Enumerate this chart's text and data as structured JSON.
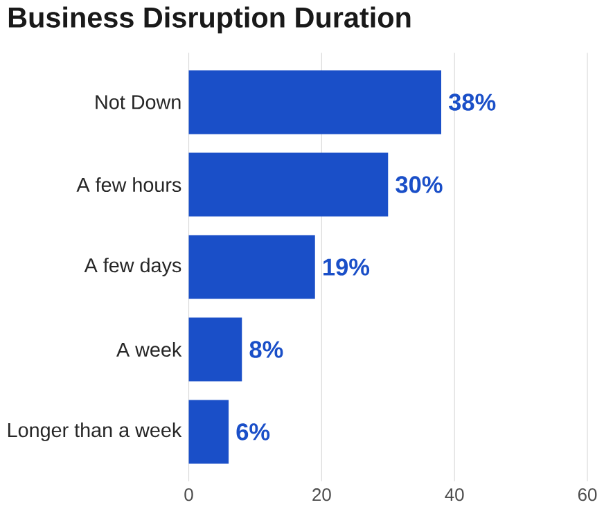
{
  "chart_data": {
    "type": "bar",
    "orientation": "horizontal",
    "title": "Business Disruption Duration",
    "categories": [
      "Not Down",
      "A few hours",
      "A few days",
      "A week",
      "Longer than a week"
    ],
    "values": [
      38,
      30,
      19,
      8,
      6
    ],
    "value_labels": [
      "38%",
      "30%",
      "19%",
      "8%",
      "6%"
    ],
    "color": "#1a4fc8",
    "xlim": [
      0,
      60
    ],
    "xticks": [
      0,
      20,
      40,
      60
    ],
    "grid": "x"
  }
}
